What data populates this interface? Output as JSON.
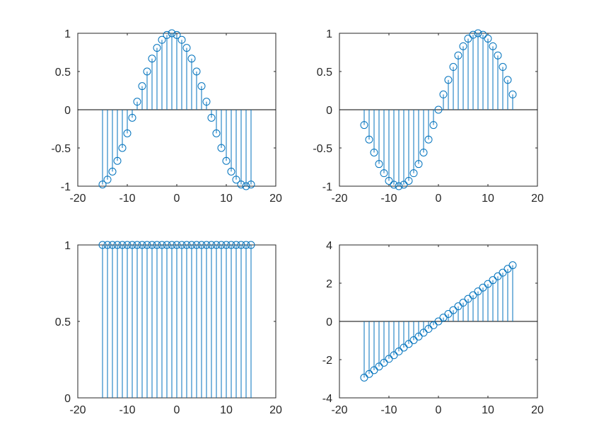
{
  "figure": {
    "background": "#ffffff",
    "axes_color": "#262626",
    "stem_color": "#0072BD"
  },
  "chart_data": [
    {
      "type": "stem",
      "panel": "top-left",
      "title": "",
      "xlabel": "",
      "ylabel": "",
      "xlim": [
        -20,
        20
      ],
      "ylim": [
        -1,
        1
      ],
      "xticks": [
        -20,
        -10,
        0,
        10,
        20
      ],
      "yticks": [
        -1,
        -0.5,
        0,
        0.5,
        1
      ],
      "xtick_labels": [
        "-20",
        "-10",
        "0",
        "10",
        "20"
      ],
      "ytick_labels": [
        "-1",
        "-0.5",
        "0",
        "0.5",
        "1"
      ],
      "grid": false,
      "baseline": 0,
      "x": [
        -15,
        -14,
        -13,
        -12,
        -11,
        -10,
        -9,
        -8,
        -7,
        -6,
        -5,
        -4,
        -3,
        -2,
        -1,
        0,
        1,
        2,
        3,
        4,
        5,
        6,
        7,
        8,
        9,
        10,
        11,
        12,
        13,
        14,
        15
      ],
      "y": [
        -0.978,
        -0.914,
        -0.809,
        -0.669,
        -0.5,
        -0.309,
        -0.105,
        0.105,
        0.309,
        0.5,
        0.669,
        0.809,
        0.914,
        0.978,
        1,
        0.978,
        0.914,
        0.809,
        0.669,
        0.5,
        0.309,
        0.105,
        -0.105,
        -0.309,
        -0.5,
        -0.669,
        -0.809,
        -0.914,
        -0.978,
        -1,
        -0.978
      ]
    },
    {
      "type": "stem",
      "panel": "top-right",
      "title": "",
      "xlabel": "",
      "ylabel": "",
      "xlim": [
        -20,
        20
      ],
      "ylim": [
        -1,
        1
      ],
      "xticks": [
        -20,
        -10,
        0,
        10,
        20
      ],
      "yticks": [
        -1,
        -0.5,
        0,
        0.5,
        1
      ],
      "xtick_labels": [
        "-20",
        "-10",
        "0",
        "10",
        "20"
      ],
      "ytick_labels": [
        "-1",
        "-0.5",
        "0",
        "0.5",
        "1"
      ],
      "grid": false,
      "baseline": 0,
      "x": [
        -15,
        -14,
        -13,
        -12,
        -11,
        -10,
        -9,
        -8,
        -7,
        -6,
        -5,
        -4,
        -3,
        -2,
        -1,
        0,
        1,
        2,
        3,
        4,
        5,
        6,
        7,
        8,
        9,
        10,
        11,
        12,
        13,
        14,
        15
      ],
      "y": [
        -0.2,
        -0.39,
        -0.56,
        -0.71,
        -0.83,
        -0.93,
        -0.98,
        -1.0,
        -0.98,
        -0.93,
        -0.83,
        -0.71,
        -0.56,
        -0.39,
        -0.2,
        0.0,
        0.2,
        0.39,
        0.56,
        0.71,
        0.83,
        0.93,
        0.98,
        1.0,
        0.98,
        0.93,
        0.83,
        0.71,
        0.56,
        0.39,
        0.2
      ]
    },
    {
      "type": "stem",
      "panel": "bottom-left",
      "title": "",
      "xlabel": "",
      "ylabel": "",
      "xlim": [
        -20,
        20
      ],
      "ylim": [
        0,
        1
      ],
      "xticks": [
        -20,
        -10,
        0,
        10,
        20
      ],
      "yticks": [
        0,
        0.5,
        1
      ],
      "xtick_labels": [
        "-20",
        "-10",
        "0",
        "10",
        "20"
      ],
      "ytick_labels": [
        "0",
        "0.5",
        "1"
      ],
      "grid": false,
      "baseline": 0,
      "x": [
        -15,
        -14,
        -13,
        -12,
        -11,
        -10,
        -9,
        -8,
        -7,
        -6,
        -5,
        -4,
        -3,
        -2,
        -1,
        0,
        1,
        2,
        3,
        4,
        5,
        6,
        7,
        8,
        9,
        10,
        11,
        12,
        13,
        14,
        15
      ],
      "y": [
        1,
        1,
        1,
        1,
        1,
        1,
        1,
        1,
        1,
        1,
        1,
        1,
        1,
        1,
        1,
        1,
        1,
        1,
        1,
        1,
        1,
        1,
        1,
        1,
        1,
        1,
        1,
        1,
        1,
        1,
        1
      ]
    },
    {
      "type": "stem",
      "panel": "bottom-right",
      "title": "",
      "xlabel": "",
      "ylabel": "",
      "xlim": [
        -20,
        20
      ],
      "ylim": [
        -4,
        4
      ],
      "xticks": [
        -20,
        -10,
        0,
        10,
        20
      ],
      "yticks": [
        -4,
        -2,
        0,
        2,
        4
      ],
      "xtick_labels": [
        "-20",
        "-10",
        "0",
        "10",
        "20"
      ],
      "ytick_labels": [
        "-4",
        "-2",
        "0",
        "2",
        "4"
      ],
      "grid": false,
      "baseline": 0,
      "x": [
        -15,
        -14,
        -13,
        -12,
        -11,
        -10,
        -9,
        -8,
        -7,
        -6,
        -5,
        -4,
        -3,
        -2,
        -1,
        0,
        1,
        2,
        3,
        4,
        5,
        6,
        7,
        8,
        9,
        10,
        11,
        12,
        13,
        14,
        15
      ],
      "y": [
        -2.94,
        -2.75,
        -2.55,
        -2.36,
        -2.16,
        -1.96,
        -1.77,
        -1.57,
        -1.37,
        -1.18,
        -0.98,
        -0.79,
        -0.59,
        -0.39,
        -0.2,
        0.0,
        0.2,
        0.39,
        0.59,
        0.79,
        0.98,
        1.18,
        1.37,
        1.57,
        1.77,
        1.96,
        2.16,
        2.36,
        2.55,
        2.75,
        2.94
      ]
    }
  ]
}
